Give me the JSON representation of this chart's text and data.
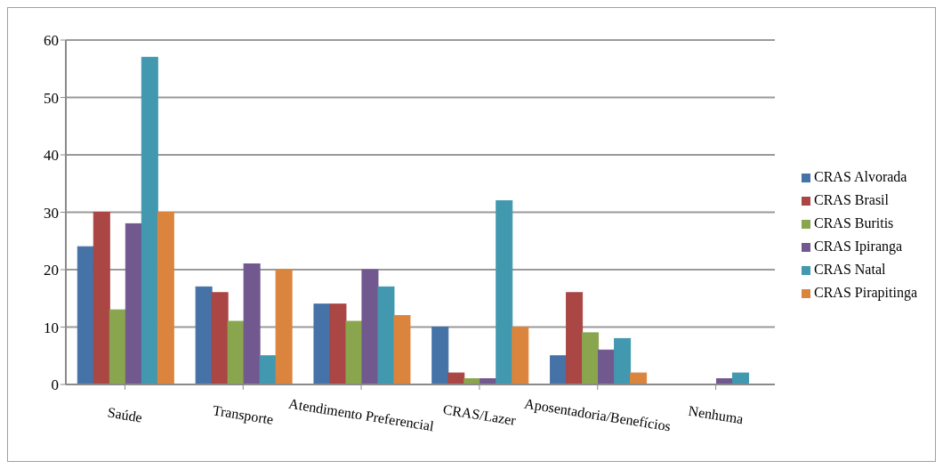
{
  "chart_data": {
    "type": "bar",
    "categories": [
      "Saúde",
      "Transporte",
      "Atendimento Preferencial",
      "CRAS/Lazer",
      "Aposentadoria/Benefícios",
      "Nenhuma"
    ],
    "series": [
      {
        "name": "CRAS Alvorada",
        "color": "#4572a7",
        "values": [
          24,
          17,
          14,
          10,
          5,
          0
        ]
      },
      {
        "name": "CRAS Brasil",
        "color": "#aa4643",
        "values": [
          30,
          16,
          14,
          2,
          16,
          0
        ]
      },
      {
        "name": "CRAS Buritis",
        "color": "#89a54e",
        "values": [
          13,
          11,
          11,
          1,
          9,
          0
        ]
      },
      {
        "name": "CRAS Ipiranga",
        "color": "#71588f",
        "values": [
          28,
          21,
          20,
          1,
          6,
          1
        ]
      },
      {
        "name": "CRAS Natal",
        "color": "#4198af",
        "values": [
          57,
          5,
          17,
          32,
          8,
          2
        ]
      },
      {
        "name": "CRAS Pirapitinga",
        "color": "#db843d",
        "values": [
          30,
          20,
          12,
          10,
          2,
          0
        ]
      }
    ],
    "ylim": [
      0,
      60
    ],
    "yticks": [
      0,
      10,
      20,
      30,
      40,
      50,
      60
    ],
    "grid": "y",
    "legend": "right"
  }
}
